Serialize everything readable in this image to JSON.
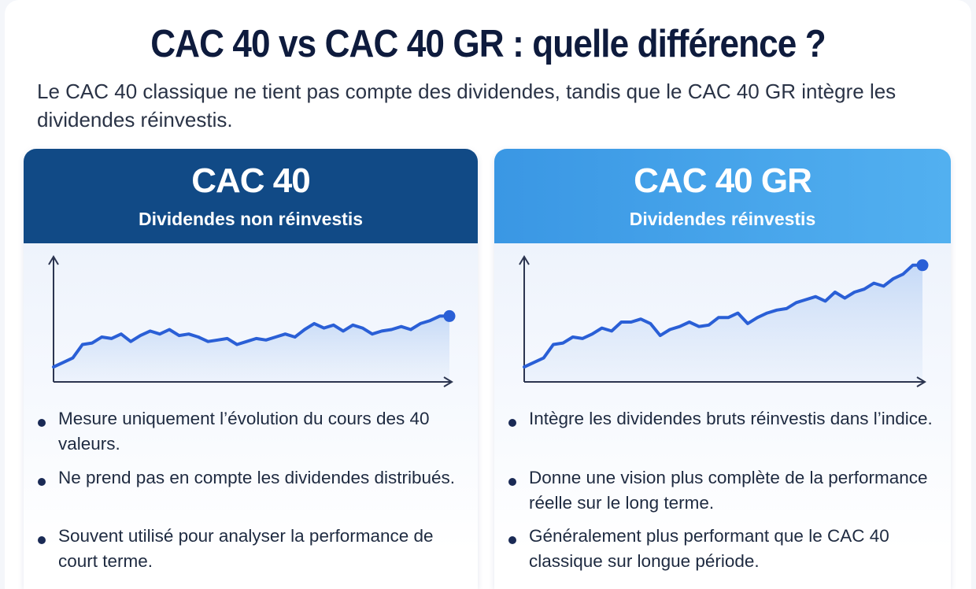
{
  "header": {
    "title": "CAC 40 vs CAC 40 GR : quelle différence ?",
    "subtitle": "Le CAC 40 classique ne tient pas compte des dividendes, tandis que le CAC 40 GR intègre les dividendes réinvestis."
  },
  "cards": [
    {
      "title": "CAC 40",
      "subtitle": "Dividendes non réinvestis",
      "header_color": "#114a86",
      "bullets": [
        "Mesure uniquement l’évolution du cours des 40 valeurs.",
        "Ne prend pas en compte les dividendes distribués.",
        "Souvent utilisé pour analyser la performance de court terme."
      ]
    },
    {
      "title": "CAC 40 GR",
      "subtitle": "Dividendes réinvestis",
      "header_color": "#3a97e4",
      "bullets": [
        "Intègre les dividendes bruts réinvestis dans l’indice.",
        "Donne une vision plus complète de la performance réelle sur le long terme.",
        "Généralement plus performant que le CAC 40 classique sur longue période."
      ]
    }
  ],
  "chart_data": [
    {
      "type": "line",
      "line_color": "#2a5fd6",
      "y": [
        30,
        33,
        36,
        45,
        46,
        50,
        49,
        52,
        47,
        51,
        54,
        52,
        55,
        51,
        52,
        50,
        47,
        48,
        49,
        45,
        47,
        49,
        48,
        50,
        52,
        50,
        55,
        59,
        56,
        58,
        54,
        58,
        56,
        52,
        54,
        55,
        57,
        55,
        59,
        61,
        64,
        64
      ]
    },
    {
      "type": "line",
      "line_color": "#2a5fd6",
      "y": [
        30,
        33,
        36,
        45,
        46,
        50,
        49,
        52,
        56,
        54,
        60,
        60,
        62,
        59,
        51,
        55,
        57,
        60,
        57,
        58,
        63,
        63,
        66,
        59,
        63,
        66,
        68,
        69,
        73,
        75,
        77,
        74,
        80,
        76,
        80,
        82,
        86,
        84,
        89,
        92,
        98,
        98
      ]
    }
  ]
}
